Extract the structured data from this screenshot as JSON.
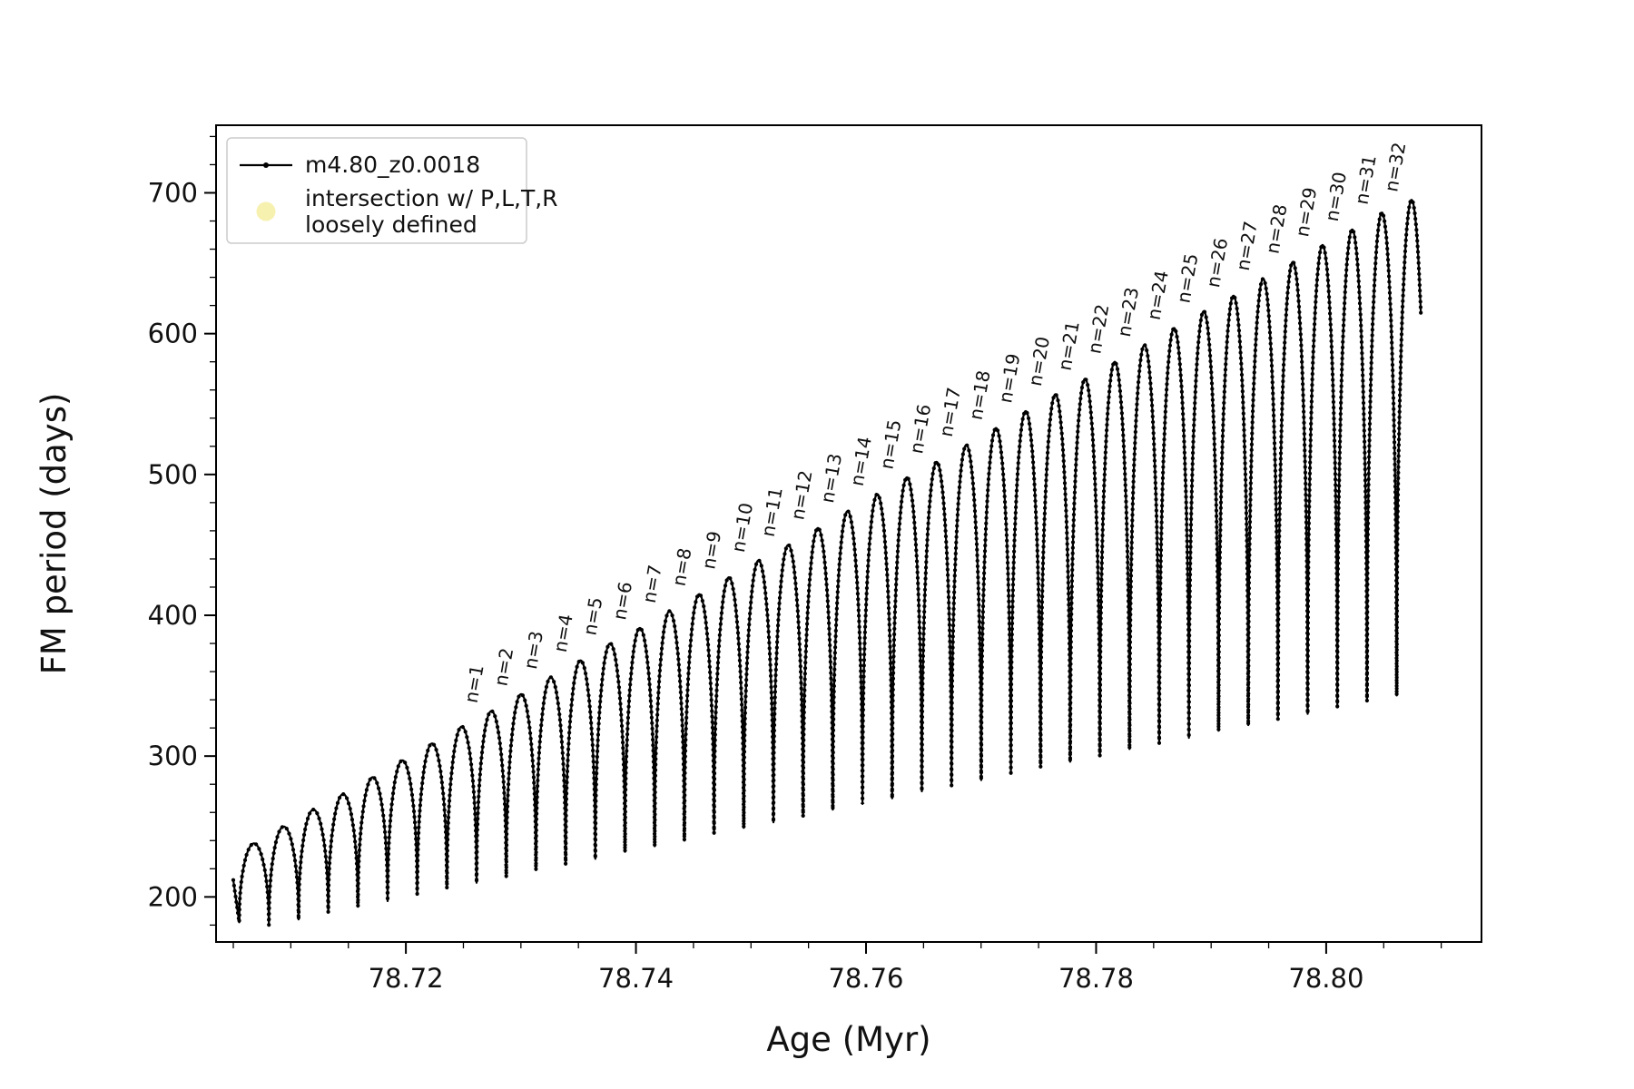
{
  "figure": {
    "background": "#ffffff"
  },
  "legend": {
    "entries": [
      {
        "type": "line-with-dot-marker",
        "label": "m4.80_z0.0018",
        "color": "#000000"
      },
      {
        "type": "round-marker",
        "label_lines": [
          "intersection w/ P,L,T,R",
          "loosely defined"
        ],
        "color": "#f7f1b0"
      }
    ]
  },
  "chart_data": {
    "type": "line",
    "title": "",
    "xlabel": "Age (Myr)",
    "ylabel": "FM period (days)",
    "xlim": [
      78.7035,
      78.8135
    ],
    "ylim": [
      168,
      748
    ],
    "xticks": [
      78.72,
      78.74,
      78.76,
      78.78,
      78.8
    ],
    "xtick_labels": [
      "78.72",
      "78.74",
      "78.76",
      "78.78",
      "78.80"
    ],
    "yticks": [
      200,
      300,
      400,
      500,
      600,
      700
    ],
    "ytick_labels": [
      "200",
      "300",
      "400",
      "500",
      "600",
      "700"
    ],
    "x_minor_step": 0.005,
    "y_minor_step": 20,
    "grid": false,
    "legend_position": "upper-left",
    "series_color": "#000000",
    "arch_spacing": 0.00258,
    "arch_power": 0.45,
    "first_trough": 182,
    "start_hook": {
      "x": 78.705,
      "y": 212
    },
    "end_tail": {
      "x": 78.8087,
      "y_to": 613
    },
    "arches": [
      {
        "label": null,
        "x": 78.7068,
        "peak": 238,
        "trough": 180
      },
      {
        "label": null,
        "x": 78.70938,
        "peak": 250,
        "trough": 184
      },
      {
        "label": null,
        "x": 78.71196,
        "peak": 262,
        "trough": 189
      },
      {
        "label": null,
        "x": 78.71454,
        "peak": 273,
        "trough": 193
      },
      {
        "label": null,
        "x": 78.71712,
        "peak": 285,
        "trough": 197
      },
      {
        "label": null,
        "x": 78.7197,
        "peak": 297,
        "trough": 202
      },
      {
        "label": null,
        "x": 78.72228,
        "peak": 309,
        "trough": 206
      },
      {
        "label": null,
        "x": 78.72486,
        "peak": 321,
        "trough": 210
      },
      {
        "label": "n=1",
        "x": 78.72744,
        "peak": 332,
        "trough": 214
      },
      {
        "label": "n=2",
        "x": 78.73002,
        "peak": 344,
        "trough": 219
      },
      {
        "label": "n=3",
        "x": 78.7326,
        "peak": 356,
        "trough": 223
      },
      {
        "label": "n=4",
        "x": 78.73518,
        "peak": 368,
        "trough": 227
      },
      {
        "label": "n=5",
        "x": 78.73776,
        "peak": 380,
        "trough": 232
      },
      {
        "label": "n=6",
        "x": 78.74034,
        "peak": 391,
        "trough": 236
      },
      {
        "label": "n=7",
        "x": 78.74292,
        "peak": 403,
        "trough": 240
      },
      {
        "label": "n=8",
        "x": 78.7455,
        "peak": 415,
        "trough": 245
      },
      {
        "label": "n=9",
        "x": 78.74808,
        "peak": 427,
        "trough": 249
      },
      {
        "label": "n=10",
        "x": 78.75066,
        "peak": 439,
        "trough": 253
      },
      {
        "label": "n=11",
        "x": 78.75324,
        "peak": 450,
        "trough": 257
      },
      {
        "label": "n=12",
        "x": 78.75582,
        "peak": 462,
        "trough": 262
      },
      {
        "label": "n=13",
        "x": 78.7584,
        "peak": 474,
        "trough": 266
      },
      {
        "label": "n=14",
        "x": 78.76098,
        "peak": 486,
        "trough": 270
      },
      {
        "label": "n=15",
        "x": 78.76356,
        "peak": 498,
        "trough": 275
      },
      {
        "label": "n=16",
        "x": 78.76614,
        "peak": 509,
        "trough": 279
      },
      {
        "label": "n=17",
        "x": 78.76872,
        "peak": 521,
        "trough": 283
      },
      {
        "label": "n=18",
        "x": 78.7713,
        "peak": 533,
        "trough": 288
      },
      {
        "label": "n=19",
        "x": 78.77388,
        "peak": 545,
        "trough": 292
      },
      {
        "label": "n=20",
        "x": 78.77646,
        "peak": 557,
        "trough": 296
      },
      {
        "label": "n=21",
        "x": 78.77904,
        "peak": 568,
        "trough": 300
      },
      {
        "label": "n=22",
        "x": 78.78162,
        "peak": 580,
        "trough": 305
      },
      {
        "label": "n=23",
        "x": 78.7842,
        "peak": 592,
        "trough": 309
      },
      {
        "label": "n=24",
        "x": 78.78678,
        "peak": 604,
        "trough": 313
      },
      {
        "label": "n=25",
        "x": 78.78936,
        "peak": 616,
        "trough": 318
      },
      {
        "label": "n=26",
        "x": 78.79194,
        "peak": 627,
        "trough": 322
      },
      {
        "label": "n=27",
        "x": 78.79452,
        "peak": 639,
        "trough": 326
      },
      {
        "label": "n=28",
        "x": 78.7971,
        "peak": 651,
        "trough": 330
      },
      {
        "label": "n=29",
        "x": 78.79968,
        "peak": 663,
        "trough": 335
      },
      {
        "label": "n=30",
        "x": 78.80226,
        "peak": 674,
        "trough": 339
      },
      {
        "label": "n=31",
        "x": 78.80484,
        "peak": 686,
        "trough": 343
      },
      {
        "label": "n=32",
        "x": 78.80742,
        "peak": 695,
        "trough": 348
      }
    ]
  }
}
